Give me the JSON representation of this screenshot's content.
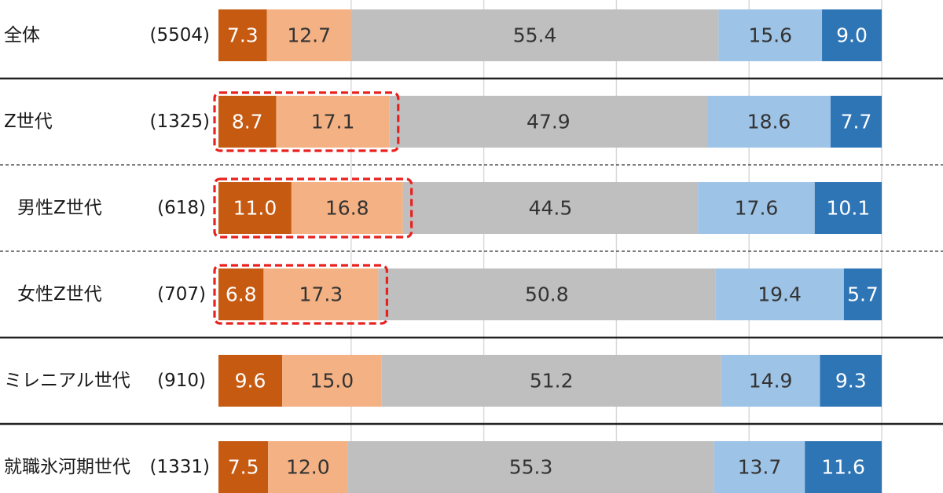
{
  "chart_data": {
    "type": "bar",
    "orientation": "horizontal",
    "stacked": true,
    "normalized": true,
    "xlim": [
      0,
      100
    ],
    "grid": true,
    "series_colors": [
      "#c65a11",
      "#f4b183",
      "#bfbfbf",
      "#9dc3e6",
      "#2e75b6"
    ],
    "rows": [
      {
        "label": "全体",
        "n": "(5504)",
        "values": [
          7.3,
          12.7,
          55.4,
          15.6,
          9.0
        ]
      },
      {
        "label": "Z世代",
        "n": "(1325)",
        "values": [
          8.7,
          17.1,
          47.9,
          18.6,
          7.7
        ],
        "highlight": true
      },
      {
        "label": "男性Z世代",
        "n": "(618)",
        "values": [
          11.0,
          16.8,
          44.5,
          17.6,
          10.1
        ],
        "highlight": true
      },
      {
        "label": "女性Z世代",
        "n": "(707)",
        "values": [
          6.8,
          17.3,
          50.8,
          19.4,
          5.7
        ],
        "highlight": true
      },
      {
        "label": "ミレニアル世代",
        "n": "(910)",
        "values": [
          9.6,
          15.0,
          51.2,
          14.9,
          9.3
        ]
      },
      {
        "label": "就職氷河期世代",
        "n": "(1331)",
        "values": [
          7.5,
          12.0,
          55.3,
          13.7,
          11.6
        ]
      }
    ]
  }
}
